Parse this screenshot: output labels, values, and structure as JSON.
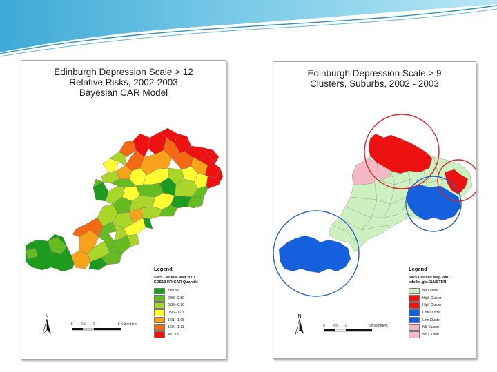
{
  "left_panel": {
    "title_lines": [
      "Edinburgh Depression Scale > 12",
      "Relative Risks, 2002-2003",
      "Bayesian CAR Model"
    ],
    "legend": {
      "heading": "Legend",
      "source": "SWS Census Map 2001",
      "field": "EDS12 RR CAR Quantile",
      "items": [
        {
          "label": "<=0.83",
          "color": "#1e9a1e"
        },
        {
          "label": "0.83 - 0.89",
          "color": "#66bb22"
        },
        {
          "label": "0.89 - 0.96",
          "color": "#aad62a"
        },
        {
          "label": "0.96 - 1.01",
          "color": "#ffff33"
        },
        {
          "label": "1.01 - 1.05",
          "color": "#f8a21a"
        },
        {
          "label": "1.05 - 1.13",
          "color": "#f46a14"
        },
        {
          "label": ">=1.13",
          "color": "#ee1111"
        }
      ]
    },
    "north": "N",
    "scale_labels": [
      "5",
      "2.5",
      "0",
      "5 Kilometers"
    ]
  },
  "right_panel": {
    "title_lines": [
      "Edinburgh Depression Scale > 9",
      "Clusters, Suburbs, 2002 - 2003"
    ],
    "legend": {
      "heading": "Legend",
      "source": "SWS Census Map 2001",
      "field": "eds9bi.gis.CLUSTER",
      "items": [
        {
          "label": "No Cluster",
          "color": "#ccf0c0"
        },
        {
          "label": "High Cluster",
          "color": "#ee1111"
        },
        {
          "label": "High Cluster",
          "color": "#ee1111"
        },
        {
          "label": "Low Cluster",
          "color": "#1560dd"
        },
        {
          "label": "Low Cluster",
          "color": "#1560dd"
        },
        {
          "label": "NS Cluster",
          "color": "#f4b9c4"
        },
        {
          "label": "NS Cluster",
          "color": "#f4b9c4"
        }
      ]
    },
    "north": "N",
    "scale_labels": [
      "5",
      "2.5",
      "0",
      "5 Kilometers"
    ]
  },
  "colors": {
    "high": "#ee1111",
    "low": "#1560dd",
    "none": "#ccf0c0",
    "ns": "#f4b9c4",
    "high_circle": "#e02020",
    "low_circle": "#2a5fc8"
  }
}
